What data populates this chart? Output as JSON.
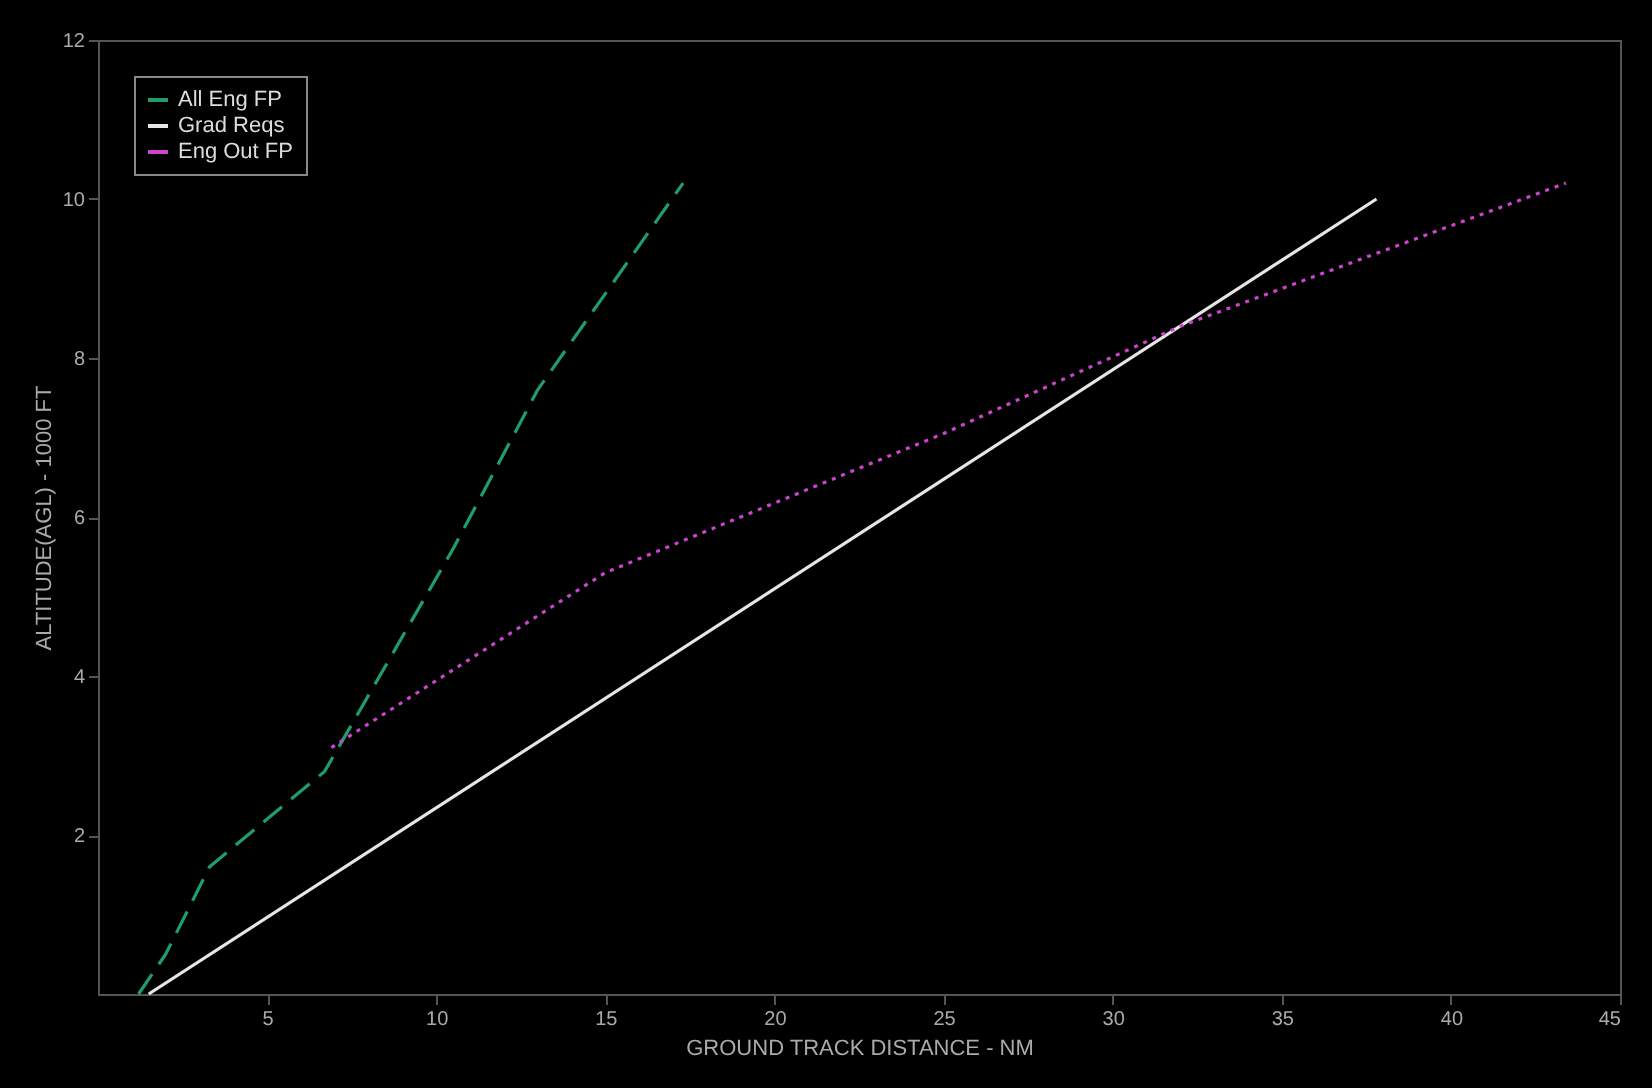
{
  "chart_data": {
    "type": "line",
    "xlabel": "GROUND TRACK DISTANCE - NM",
    "ylabel": "ALTITUDE(AGL) - 1000 FT",
    "xlim": [
      0,
      45
    ],
    "ylim": [
      0,
      12
    ],
    "xticks": [
      5,
      10,
      15,
      20,
      25,
      30,
      35,
      40,
      45
    ],
    "yticks": [
      2,
      4,
      6,
      8,
      10,
      12
    ],
    "grid": false,
    "legend": "top left",
    "marker": "none",
    "series": [
      {
        "name": "All Eng FP",
        "color": "#1f9e6a",
        "line_style": "dashed",
        "x": [
          1.2,
          2.0,
          3.3,
          6.7,
          10.5,
          13.0,
          17.3
        ],
        "values": [
          0,
          0.5,
          1.6,
          2.8,
          5.6,
          7.6,
          10.2
        ]
      },
      {
        "name": "Grad Reqs",
        "color": "#e6e6e6",
        "line_style": "solid",
        "x": [
          1.5,
          37.8
        ],
        "values": [
          0,
          10
        ]
      },
      {
        "name": "Eng Out FP",
        "color": "#cc44cc",
        "line_style": "dotted",
        "x": [
          6.9,
          15,
          25,
          32,
          43.4
        ],
        "values": [
          3.1,
          5.3,
          7.05,
          8.4,
          10.2
        ]
      }
    ]
  }
}
